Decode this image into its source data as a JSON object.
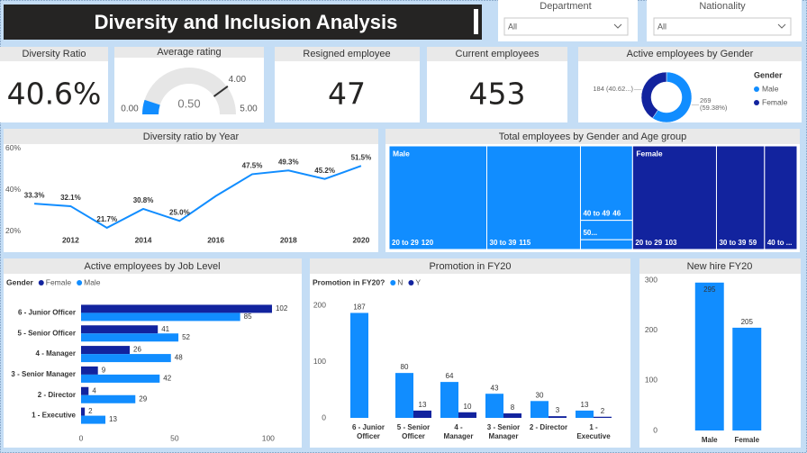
{
  "title": "Diversity and Inclusion Analysis",
  "slicers": [
    {
      "label": "Department",
      "value": "All"
    },
    {
      "label": "Nationality",
      "value": "All"
    }
  ],
  "kpis": [
    {
      "title": "Diversity Ratio",
      "value": "40.6%"
    },
    {
      "title": "Resigned employee",
      "value": 47
    },
    {
      "title": "Current employees",
      "value": 453
    }
  ],
  "chart_data": [
    {
      "type": "gauge",
      "title": "Average rating",
      "value": 0.5,
      "value_label": "0.50",
      "target": 4,
      "target_label": "4.00",
      "range": [
        {
          "value": 0,
          "label": "0.00"
        },
        {
          "value": 5,
          "label": "5.00"
        }
      ],
      "color": "#118dff",
      "track_color": "#e6e6e6",
      "target_color": "#333333"
    },
    {
      "type": "donut",
      "title": "Active employees by Gender",
      "legend_title": "Gender",
      "categories": [
        "Male",
        "Female"
      ],
      "values": [
        269,
        184
      ],
      "value_labels": [
        "269 (59.38%)",
        "184 (40.62...)"
      ],
      "colors": [
        "#118dff",
        "#12239e"
      ],
      "legend": "right"
    },
    {
      "type": "line",
      "title": "Diversity ratio by Year",
      "x": [
        2011,
        2012,
        2013,
        2014,
        2015,
        2016,
        2017,
        2018,
        2019,
        2020
      ],
      "values": [
        33.3,
        32.1,
        21.7,
        30.8,
        25.0,
        37,
        47.5,
        49.3,
        45.2,
        51.5
      ],
      "value_labels": [
        "33.3%",
        "32.1%",
        "21.7%",
        "30.8%",
        "25.0%",
        null,
        "47.5%",
        "49.3%",
        "45.2%",
        "51.5%"
      ],
      "color": "#118dff",
      "xlim": [
        2010.7,
        2020.3
      ],
      "xticks": [
        2012,
        2014,
        2016,
        2018,
        2020
      ],
      "ylim": [
        19.5,
        62
      ],
      "yticks": [
        {
          "value": 20,
          "label": "20%"
        },
        {
          "value": 40,
          "label": "40%"
        },
        {
          "value": 60,
          "label": "60%"
        }
      ],
      "grid": false
    },
    {
      "type": "treemap",
      "title": "Total employees by Gender and Age group",
      "groups": [
        {
          "name": "Male",
          "color": "#118dff",
          "categories": [
            "20 to 29",
            "30 to 39",
            "40 to 49",
            "50...",
            null
          ],
          "values": [
            120,
            115,
            46,
            12,
            6
          ]
        },
        {
          "name": "Female",
          "color": "#12239e",
          "categories": [
            "20 to 29",
            "30 to 39",
            "40 to ..."
          ],
          "values": [
            103,
            59,
            40
          ]
        }
      ]
    },
    {
      "type": "hbar",
      "title": "Active employees by Job Level",
      "legend_title": "Gender",
      "categories": [
        "6 - Junior Officer",
        "5 - Senior Officer",
        "4 - Manager",
        "3 - Senior Manager",
        "2 - Director",
        "1 - Executive"
      ],
      "series": [
        {
          "name": "Female",
          "color": "#12239e",
          "values": [
            102,
            41,
            26,
            9,
            4,
            2
          ]
        },
        {
          "name": "Male",
          "color": "#118dff",
          "values": [
            85,
            52,
            48,
            42,
            29,
            13
          ]
        }
      ],
      "xlim": [
        0,
        115
      ],
      "xticks": [
        0,
        50,
        100
      ],
      "legend": "top-left"
    },
    {
      "type": "column",
      "title": "Promotion in FY20",
      "legend_title": "Promotion in FY20?",
      "categories": [
        "6 - Junior Officer",
        "5 - Senior Officer",
        "4 - Manager",
        "3 - Senior Manager",
        "2 - Director",
        "1 - Executive"
      ],
      "series": [
        {
          "name": "N",
          "color": "#118dff",
          "values": [
            187,
            80,
            64,
            43,
            30,
            13
          ]
        },
        {
          "name": "Y",
          "color": "#12239e",
          "values": [
            null,
            13,
            10,
            8,
            3,
            2
          ]
        }
      ],
      "ylim": [
        0,
        215
      ],
      "yticks": [
        0,
        100,
        200
      ],
      "legend": "top-left"
    },
    {
      "type": "column",
      "title": "New hire FY20",
      "categories": [
        "Male",
        "Female"
      ],
      "values": [
        295,
        205
      ],
      "color": "#118dff",
      "ylim": [
        0,
        300
      ],
      "yticks": [
        0,
        100,
        200,
        300
      ]
    }
  ]
}
